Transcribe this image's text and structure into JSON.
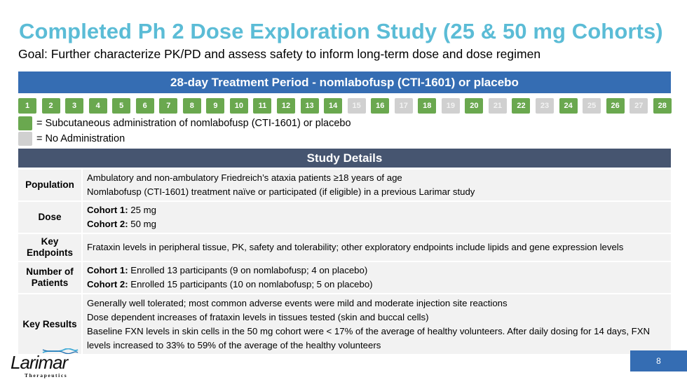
{
  "slide": {
    "title": "Completed Ph 2 Dose Exploration Study (25 & 50 mg Cohorts)",
    "subtitle": "Goal: Further characterize PK/PD and assess safety to inform long-term dose and dose regimen",
    "page_number": "8"
  },
  "treatment_period": {
    "header": "28-day Treatment Period - nomlabofusp (CTI-1601) or placebo",
    "days": [
      {
        "label": "1",
        "status": "administered"
      },
      {
        "label": "2",
        "status": "administered"
      },
      {
        "label": "3",
        "status": "administered"
      },
      {
        "label": "4",
        "status": "administered"
      },
      {
        "label": "5",
        "status": "administered"
      },
      {
        "label": "6",
        "status": "administered"
      },
      {
        "label": "7",
        "status": "administered"
      },
      {
        "label": "8",
        "status": "administered"
      },
      {
        "label": "9",
        "status": "administered"
      },
      {
        "label": "10",
        "status": "administered"
      },
      {
        "label": "11",
        "status": "administered"
      },
      {
        "label": "12",
        "status": "administered"
      },
      {
        "label": "13",
        "status": "administered"
      },
      {
        "label": "14",
        "status": "administered"
      },
      {
        "label": "15",
        "status": "none"
      },
      {
        "label": "16",
        "status": "administered"
      },
      {
        "label": "17",
        "status": "none"
      },
      {
        "label": "18",
        "status": "administered"
      },
      {
        "label": "19",
        "status": "none"
      },
      {
        "label": "20",
        "status": "administered"
      },
      {
        "label": "21",
        "status": "none"
      },
      {
        "label": "22",
        "status": "administered"
      },
      {
        "label": "23",
        "status": "none"
      },
      {
        "label": "24",
        "status": "administered"
      },
      {
        "label": "25",
        "status": "none"
      },
      {
        "label": "26",
        "status": "administered"
      },
      {
        "label": "27",
        "status": "none"
      },
      {
        "label": "28",
        "status": "administered"
      }
    ],
    "legend": [
      {
        "label": "= Subcutaneous administration of nomlabofusp (CTI-1601) or placebo",
        "color": "#6aa84f"
      },
      {
        "label": "= No Administration",
        "color": "#d0d0d0"
      }
    ]
  },
  "study_details": {
    "header": "Study Details",
    "rows": [
      {
        "label": "Population",
        "lines": [
          {
            "bold": "",
            "text": "Ambulatory and non-ambulatory Friedreich’s ataxia patients ≥18 years of age"
          },
          {
            "bold": "",
            "text": "Nomlabofusp (CTI-1601) treatment naïve or participated (if eligible) in a previous Larimar study"
          }
        ]
      },
      {
        "label": "Dose",
        "lines": [
          {
            "bold": "Cohort 1:",
            "text": " 25 mg"
          },
          {
            "bold": "Cohort 2:",
            "text": " 50 mg"
          }
        ]
      },
      {
        "label": "Key Endpoints",
        "lines": [
          {
            "bold": "",
            "text": "Frataxin levels in peripheral tissue, PK, safety and tolerability; other exploratory endpoints include lipids and gene expression levels"
          }
        ]
      },
      {
        "label": "Number of Patients",
        "lines": [
          {
            "bold": "Cohort 1:",
            "text": " Enrolled 13 participants (9 on nomlabofusp; 4 on placebo)"
          },
          {
            "bold": "Cohort 2:",
            "text": " Enrolled 15 participants (10 on nomlabofusp; 5 on placebo)"
          }
        ]
      },
      {
        "label": "Key Results",
        "lines": [
          {
            "bold": "",
            "text": "Generally well tolerated; most common adverse events were mild and moderate injection site reactions"
          },
          {
            "bold": "",
            "text": "Dose dependent increases of frataxin levels in tissues tested (skin and buccal cells)"
          },
          {
            "bold": "",
            "text": "Baseline FXN levels in skin cells in the 50 mg cohort were < 17% of the average of healthy volunteers. After daily dosing for 14 days, FXN levels increased to 33% to 59% of the average of the healthy volunteers"
          }
        ]
      }
    ]
  },
  "logo": {
    "wordmark": "Larimar",
    "tagline": "Therapeutics",
    "icon": "dna-helix-icon"
  },
  "colors": {
    "title": "#5bbcd6",
    "period_header": "#356db3",
    "details_header": "#465570",
    "administered": "#6aa84f",
    "no_administration": "#d0d0d0",
    "row_background": "#f2f2f2"
  }
}
